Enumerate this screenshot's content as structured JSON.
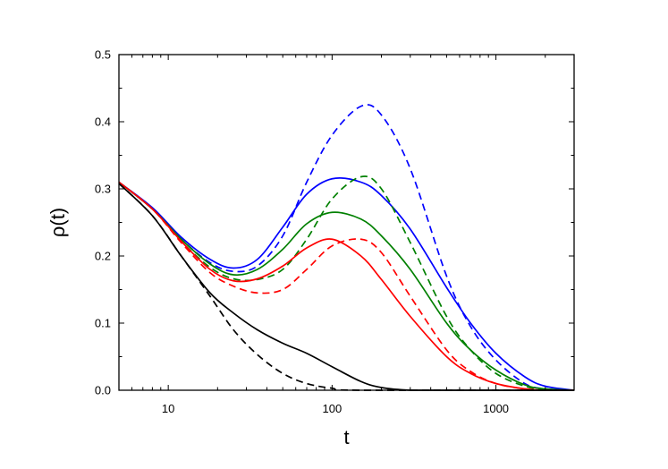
{
  "chart_data": {
    "type": "line",
    "title": "",
    "xlabel": "t",
    "ylabel": "ρ(t)",
    "xscale": "log",
    "xlim": [
      5,
      3000
    ],
    "ylim": [
      0,
      0.5
    ],
    "grid": false,
    "legend": "none",
    "x_tick_labels": [
      {
        "value": 10,
        "label": "10"
      },
      {
        "value": 100,
        "label": "100"
      },
      {
        "value": 1000,
        "label": "1000"
      }
    ],
    "y_tick_labels": [
      {
        "value": 0.0,
        "label": "0.0"
      },
      {
        "value": 0.1,
        "label": "0.1"
      },
      {
        "value": 0.2,
        "label": "0.2"
      },
      {
        "value": 0.3,
        "label": "0.3"
      },
      {
        "value": 0.4,
        "label": "0.4"
      },
      {
        "value": 0.5,
        "label": "0.5"
      }
    ],
    "series": [
      {
        "color": "#0000ff",
        "style": "solid",
        "points": [
          [
            5,
            0.31
          ],
          [
            8,
            0.272
          ],
          [
            12,
            0.228
          ],
          [
            18,
            0.195
          ],
          [
            25,
            0.182
          ],
          [
            35,
            0.195
          ],
          [
            50,
            0.243
          ],
          [
            70,
            0.292
          ],
          [
            100,
            0.315
          ],
          [
            150,
            0.31
          ],
          [
            200,
            0.29
          ],
          [
            300,
            0.24
          ],
          [
            500,
            0.153
          ],
          [
            700,
            0.1
          ],
          [
            1000,
            0.055
          ],
          [
            1500,
            0.02
          ],
          [
            2000,
            0.006
          ],
          [
            3000,
            0.0
          ]
        ]
      },
      {
        "color": "#0000ff",
        "style": "dashed",
        "points": [
          [
            5,
            0.31
          ],
          [
            8,
            0.27
          ],
          [
            12,
            0.225
          ],
          [
            18,
            0.19
          ],
          [
            25,
            0.177
          ],
          [
            35,
            0.185
          ],
          [
            50,
            0.23
          ],
          [
            70,
            0.31
          ],
          [
            100,
            0.38
          ],
          [
            150,
            0.423
          ],
          [
            200,
            0.41
          ],
          [
            300,
            0.33
          ],
          [
            500,
            0.17
          ],
          [
            700,
            0.095
          ],
          [
            1000,
            0.045
          ],
          [
            1500,
            0.01
          ],
          [
            2000,
            0.002
          ],
          [
            3000,
            0.0
          ]
        ]
      },
      {
        "color": "#008000",
        "style": "solid",
        "points": [
          [
            5,
            0.31
          ],
          [
            8,
            0.27
          ],
          [
            12,
            0.225
          ],
          [
            18,
            0.188
          ],
          [
            25,
            0.172
          ],
          [
            35,
            0.18
          ],
          [
            50,
            0.21
          ],
          [
            70,
            0.248
          ],
          [
            100,
            0.265
          ],
          [
            150,
            0.255
          ],
          [
            200,
            0.23
          ],
          [
            300,
            0.18
          ],
          [
            500,
            0.1
          ],
          [
            700,
            0.06
          ],
          [
            1000,
            0.03
          ],
          [
            1500,
            0.008
          ],
          [
            2000,
            0.002
          ],
          [
            3000,
            0.0
          ]
        ]
      },
      {
        "color": "#008000",
        "style": "dashed",
        "points": [
          [
            5,
            0.31
          ],
          [
            8,
            0.27
          ],
          [
            12,
            0.222
          ],
          [
            18,
            0.183
          ],
          [
            25,
            0.166
          ],
          [
            35,
            0.165
          ],
          [
            50,
            0.18
          ],
          [
            70,
            0.225
          ],
          [
            100,
            0.285
          ],
          [
            150,
            0.318
          ],
          [
            200,
            0.3
          ],
          [
            300,
            0.22
          ],
          [
            500,
            0.11
          ],
          [
            700,
            0.06
          ],
          [
            1000,
            0.025
          ],
          [
            1500,
            0.006
          ],
          [
            2000,
            0.001
          ],
          [
            3000,
            0.0
          ]
        ]
      },
      {
        "color": "#ff0000",
        "style": "solid",
        "points": [
          [
            5,
            0.31
          ],
          [
            8,
            0.27
          ],
          [
            12,
            0.222
          ],
          [
            18,
            0.18
          ],
          [
            25,
            0.163
          ],
          [
            35,
            0.166
          ],
          [
            50,
            0.185
          ],
          [
            70,
            0.212
          ],
          [
            100,
            0.225
          ],
          [
            150,
            0.2
          ],
          [
            200,
            0.165
          ],
          [
            300,
            0.11
          ],
          [
            500,
            0.05
          ],
          [
            700,
            0.025
          ],
          [
            1000,
            0.01
          ],
          [
            1500,
            0.002
          ],
          [
            2000,
            0.0
          ],
          [
            3000,
            0.0
          ]
        ]
      },
      {
        "color": "#ff0000",
        "style": "dashed",
        "points": [
          [
            5,
            0.31
          ],
          [
            8,
            0.27
          ],
          [
            12,
            0.22
          ],
          [
            18,
            0.175
          ],
          [
            25,
            0.155
          ],
          [
            35,
            0.145
          ],
          [
            50,
            0.15
          ],
          [
            70,
            0.18
          ],
          [
            100,
            0.215
          ],
          [
            150,
            0.225
          ],
          [
            200,
            0.205
          ],
          [
            300,
            0.14
          ],
          [
            500,
            0.06
          ],
          [
            700,
            0.028
          ],
          [
            1000,
            0.01
          ],
          [
            1500,
            0.002
          ],
          [
            2000,
            0.0
          ],
          [
            3000,
            0.0
          ]
        ]
      },
      {
        "color": "#000000",
        "style": "solid",
        "points": [
          [
            5,
            0.308
          ],
          [
            8,
            0.26
          ],
          [
            12,
            0.2
          ],
          [
            18,
            0.145
          ],
          [
            25,
            0.115
          ],
          [
            35,
            0.09
          ],
          [
            50,
            0.07
          ],
          [
            70,
            0.055
          ],
          [
            100,
            0.035
          ],
          [
            150,
            0.013
          ],
          [
            200,
            0.004
          ],
          [
            300,
            0.0
          ],
          [
            500,
            0.0
          ],
          [
            3000,
            0.0
          ]
        ]
      },
      {
        "color": "#000000",
        "style": "dashed",
        "points": [
          [
            5,
            0.308
          ],
          [
            8,
            0.26
          ],
          [
            12,
            0.2
          ],
          [
            18,
            0.14
          ],
          [
            25,
            0.09
          ],
          [
            35,
            0.053
          ],
          [
            50,
            0.025
          ],
          [
            70,
            0.01
          ],
          [
            100,
            0.003
          ],
          [
            150,
            0.0
          ],
          [
            3000,
            0.0
          ]
        ]
      }
    ]
  }
}
